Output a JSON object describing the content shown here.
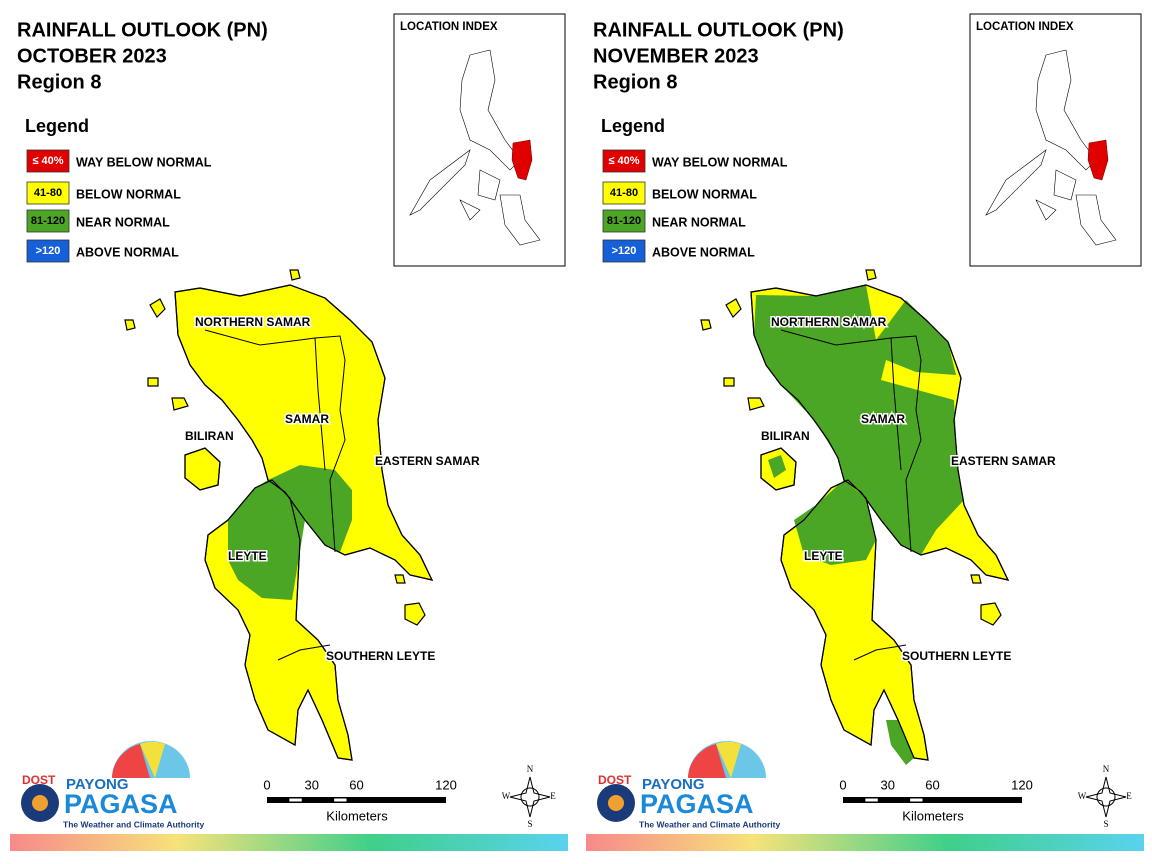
{
  "panels": [
    {
      "title": [
        "RAINFALL OUTLOOK (PN)",
        "OCTOBER 2023",
        "Region 8"
      ],
      "legend": {
        "title": "Legend",
        "items": [
          {
            "swatch": "≤ 40%",
            "label": "WAY BELOW NORMAL",
            "color": "#e00000"
          },
          {
            "swatch": "41-80",
            "label": "BELOW NORMAL",
            "color": "#ffff00"
          },
          {
            "swatch": "81-120",
            "label": "NEAR NORMAL",
            "color": "#4ca626"
          },
          {
            "swatch": ">120",
            "label": "ABOVE NORMAL",
            "color": "#1560d8"
          }
        ]
      },
      "location_index": "LOCATION INDEX",
      "regions": [
        "NORTHERN SAMAR",
        "SAMAR",
        "EASTERN SAMAR",
        "BILIRAN",
        "LEYTE",
        "SOUTHERN LEYTE"
      ],
      "scale": {
        "ticks": [
          0,
          30,
          60,
          120
        ],
        "unit": "Kilometers"
      },
      "compass": [
        "N",
        "E",
        "S",
        "W"
      ],
      "logo": {
        "agency": "DOST",
        "line1": "PAYONG",
        "line2": "PAGASA",
        "tagline": "The Weather and Climate Authority"
      }
    },
    {
      "title": [
        "RAINFALL OUTLOOK (PN)",
        "NOVEMBER 2023",
        "Region 8"
      ],
      "legend": {
        "title": "Legend",
        "items": [
          {
            "swatch": "≤ 40%",
            "label": "WAY BELOW NORMAL",
            "color": "#e00000"
          },
          {
            "swatch": "41-80",
            "label": "BELOW NORMAL",
            "color": "#ffff00"
          },
          {
            "swatch": "81-120",
            "label": "NEAR NORMAL",
            "color": "#4ca626"
          },
          {
            "swatch": ">120",
            "label": "ABOVE NORMAL",
            "color": "#1560d8"
          }
        ]
      },
      "location_index": "LOCATION INDEX",
      "regions": [
        "NORTHERN SAMAR",
        "SAMAR",
        "EASTERN SAMAR",
        "BILIRAN",
        "LEYTE",
        "SOUTHERN LEYTE"
      ],
      "scale": {
        "ticks": [
          0,
          30,
          60,
          120
        ],
        "unit": "Kilometers"
      },
      "compass": [
        "N",
        "E",
        "S",
        "W"
      ],
      "logo": {
        "agency": "DOST",
        "line1": "PAYONG",
        "line2": "PAGASA",
        "tagline": "The Weather and Climate Authority"
      }
    }
  ]
}
